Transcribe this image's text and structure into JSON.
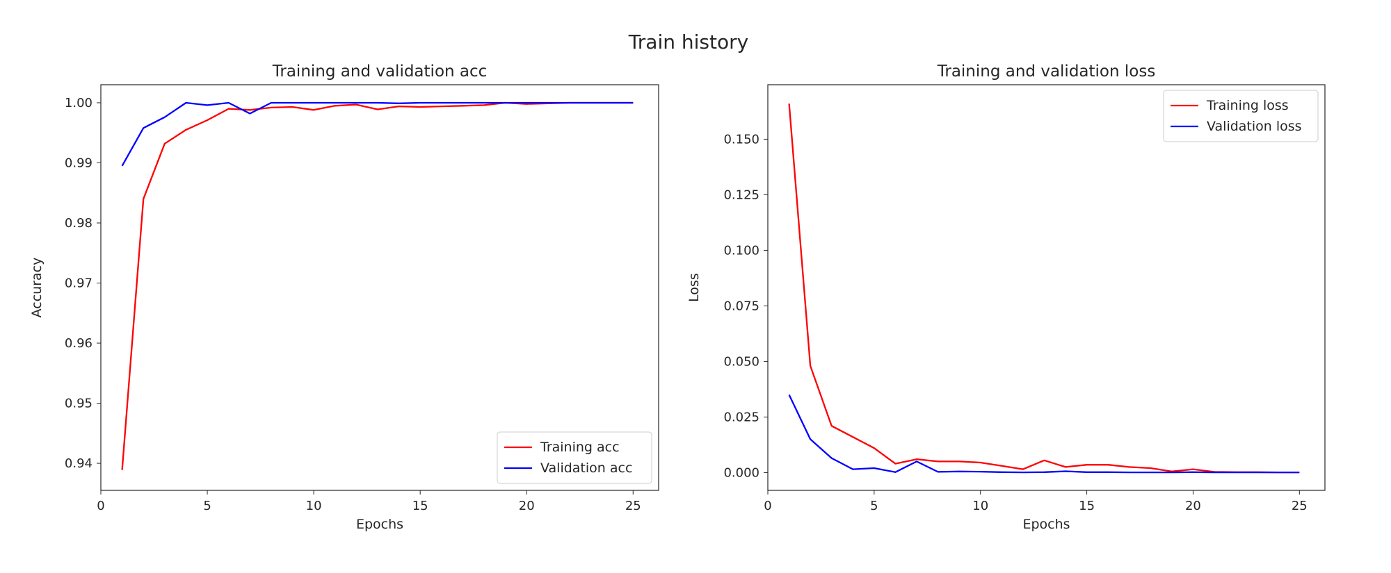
{
  "figure": {
    "suptitle": "Train history"
  },
  "chart_data": [
    {
      "type": "line",
      "title": "Training and validation acc",
      "xlabel": "Epochs",
      "ylabel": "Accuracy",
      "xlim": [
        0,
        26.2
      ],
      "ylim": [
        0.9355,
        1.003
      ],
      "xticks": [
        0,
        5,
        10,
        15,
        20,
        25
      ],
      "yticks": [
        0.94,
        0.95,
        0.96,
        0.97,
        0.98,
        0.99,
        1.0
      ],
      "ytick_labels": [
        "0.94",
        "0.95",
        "0.96",
        "0.97",
        "0.98",
        "0.99",
        "1.00"
      ],
      "grid": false,
      "legend": "lower-right",
      "x": [
        1,
        2,
        3,
        4,
        5,
        6,
        7,
        8,
        9,
        10,
        11,
        12,
        13,
        14,
        15,
        16,
        17,
        18,
        19,
        20,
        21,
        22,
        23,
        24,
        25
      ],
      "series": [
        {
          "name": "Training acc",
          "color": "#ff0000",
          "values": [
            0.9389,
            0.984,
            0.9932,
            0.9955,
            0.9971,
            0.999,
            0.9988,
            0.9992,
            0.9993,
            0.9988,
            0.9995,
            0.9997,
            0.9989,
            0.9994,
            0.9993,
            0.9994,
            0.9995,
            0.9996,
            1.0,
            0.9998,
            0.9999,
            1.0,
            1.0,
            1.0,
            1.0
          ]
        },
        {
          "name": "Validation acc",
          "color": "#0000ff",
          "values": [
            0.9895,
            0.9958,
            0.9976,
            1.0,
            0.9996,
            1.0,
            0.9982,
            1.0,
            1.0,
            1.0,
            1.0,
            1.0,
            1.0,
            0.9999,
            1.0,
            1.0,
            1.0,
            1.0,
            1.0,
            1.0,
            1.0,
            1.0,
            1.0,
            1.0,
            1.0
          ]
        }
      ]
    },
    {
      "type": "line",
      "title": "Training and validation loss",
      "xlabel": "Epochs",
      "ylabel": "Loss",
      "xlim": [
        0,
        26.2
      ],
      "ylim": [
        -0.008,
        0.1745
      ],
      "xticks": [
        0,
        5,
        10,
        15,
        20,
        25
      ],
      "yticks": [
        0.0,
        0.025,
        0.05,
        0.075,
        0.1,
        0.125,
        0.15
      ],
      "ytick_labels": [
        "0.000",
        "0.025",
        "0.050",
        "0.075",
        "0.100",
        "0.125",
        "0.150"
      ],
      "grid": false,
      "legend": "upper-right",
      "x": [
        1,
        2,
        3,
        4,
        5,
        6,
        7,
        8,
        9,
        10,
        11,
        12,
        13,
        14,
        15,
        16,
        17,
        18,
        19,
        20,
        21,
        22,
        23,
        24,
        25
      ],
      "series": [
        {
          "name": "Training loss",
          "color": "#ff0000",
          "values": [
            0.166,
            0.048,
            0.021,
            0.016,
            0.011,
            0.004,
            0.006,
            0.005,
            0.005,
            0.0045,
            0.003,
            0.0015,
            0.0055,
            0.0025,
            0.0035,
            0.0035,
            0.0025,
            0.002,
            0.0005,
            0.0015,
            0.0003,
            0.0002,
            0.0002,
            0.0001,
            0.0001
          ]
        },
        {
          "name": "Validation loss",
          "color": "#0000ff",
          "values": [
            0.035,
            0.015,
            0.0065,
            0.0015,
            0.002,
            0.0002,
            0.005,
            0.0003,
            0.0005,
            0.0004,
            0.0002,
            0.0001,
            0.0002,
            0.0006,
            0.0002,
            0.0002,
            0.0001,
            0.0001,
            0.0001,
            0.0002,
            0.0001,
            0.0001,
            0.0001,
            0.0001,
            0.0001
          ]
        }
      ]
    }
  ]
}
